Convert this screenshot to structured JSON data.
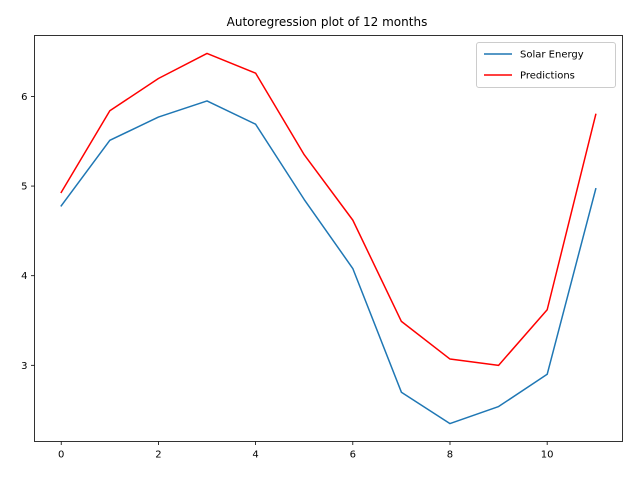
{
  "chart_data": {
    "type": "line",
    "title": "Autoregression plot of 12 months",
    "xlabel": "",
    "ylabel": "",
    "xlim": [
      -0.55,
      11.55
    ],
    "ylim": [
      2.15,
      6.68
    ],
    "xticks": [
      0,
      2,
      4,
      6,
      8,
      10
    ],
    "yticks": [
      3,
      4,
      5,
      6
    ],
    "grid": false,
    "legend_position": "top-right",
    "x": [
      0,
      1,
      2,
      3,
      4,
      5,
      6,
      7,
      8,
      9,
      10,
      11
    ],
    "series": [
      {
        "name": "Solar Energy",
        "color": "#1f77b4",
        "values": [
          4.78,
          5.51,
          5.77,
          5.95,
          5.69,
          4.85,
          4.08,
          2.7,
          2.35,
          2.54,
          2.9,
          4.97
        ]
      },
      {
        "name": "Predictions",
        "color": "#ff0000",
        "values": [
          4.93,
          5.84,
          6.2,
          6.48,
          6.26,
          5.35,
          4.62,
          3.49,
          3.07,
          3.0,
          3.62,
          5.8
        ]
      }
    ]
  }
}
